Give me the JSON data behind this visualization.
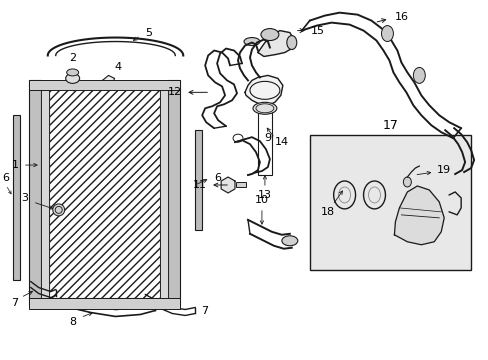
{
  "background_color": "#ffffff",
  "line_color": "#1a1a1a",
  "label_color": "#000000",
  "fig_width": 4.89,
  "fig_height": 3.6,
  "dpi": 100,
  "box17_fill": "#e8e8e8"
}
